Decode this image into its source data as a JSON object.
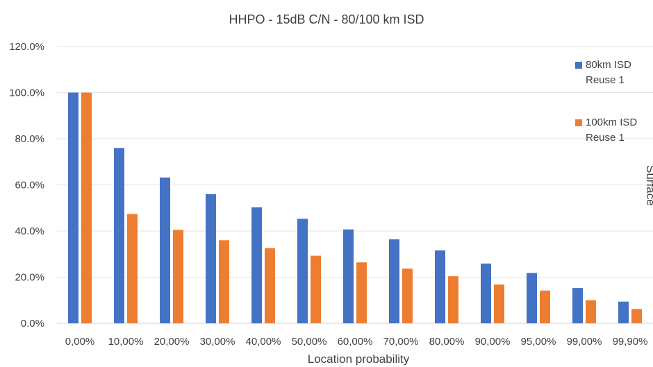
{
  "chart_data": {
    "type": "bar",
    "title": "HHPO - 15dB C/N - 80/100 km ISD",
    "xlabel": "Location probability",
    "ylabel": "",
    "side_label": "Surface",
    "categories": [
      "0,00%",
      "10,00%",
      "20,00%",
      "30,00%",
      "40,00%",
      "50,00%",
      "60,00%",
      "70,00%",
      "80,00%",
      "90,00%",
      "95,00%",
      "99,00%",
      "99,90%"
    ],
    "series": [
      {
        "name_lines": [
          "80km ISD",
          "Reuse 1"
        ],
        "color": "#4472C4",
        "values": [
          100.0,
          76.0,
          63.2,
          56.0,
          50.3,
          45.3,
          40.7,
          36.4,
          31.6,
          25.9,
          21.8,
          15.3,
          9.4
        ]
      },
      {
        "name_lines": [
          "100km ISD",
          "Reuse 1"
        ],
        "color": "#ED7D31",
        "values": [
          100.0,
          47.4,
          40.5,
          36.0,
          32.6,
          29.3,
          26.4,
          23.7,
          20.4,
          16.8,
          14.2,
          10.0,
          6.2
        ]
      }
    ],
    "ylim": [
      0,
      120
    ],
    "yticks": [
      "0.0%",
      "20.0%",
      "40.0%",
      "60.0%",
      "80.0%",
      "100.0%",
      "120.0%"
    ],
    "grid": true,
    "legend_position": "top-right"
  }
}
